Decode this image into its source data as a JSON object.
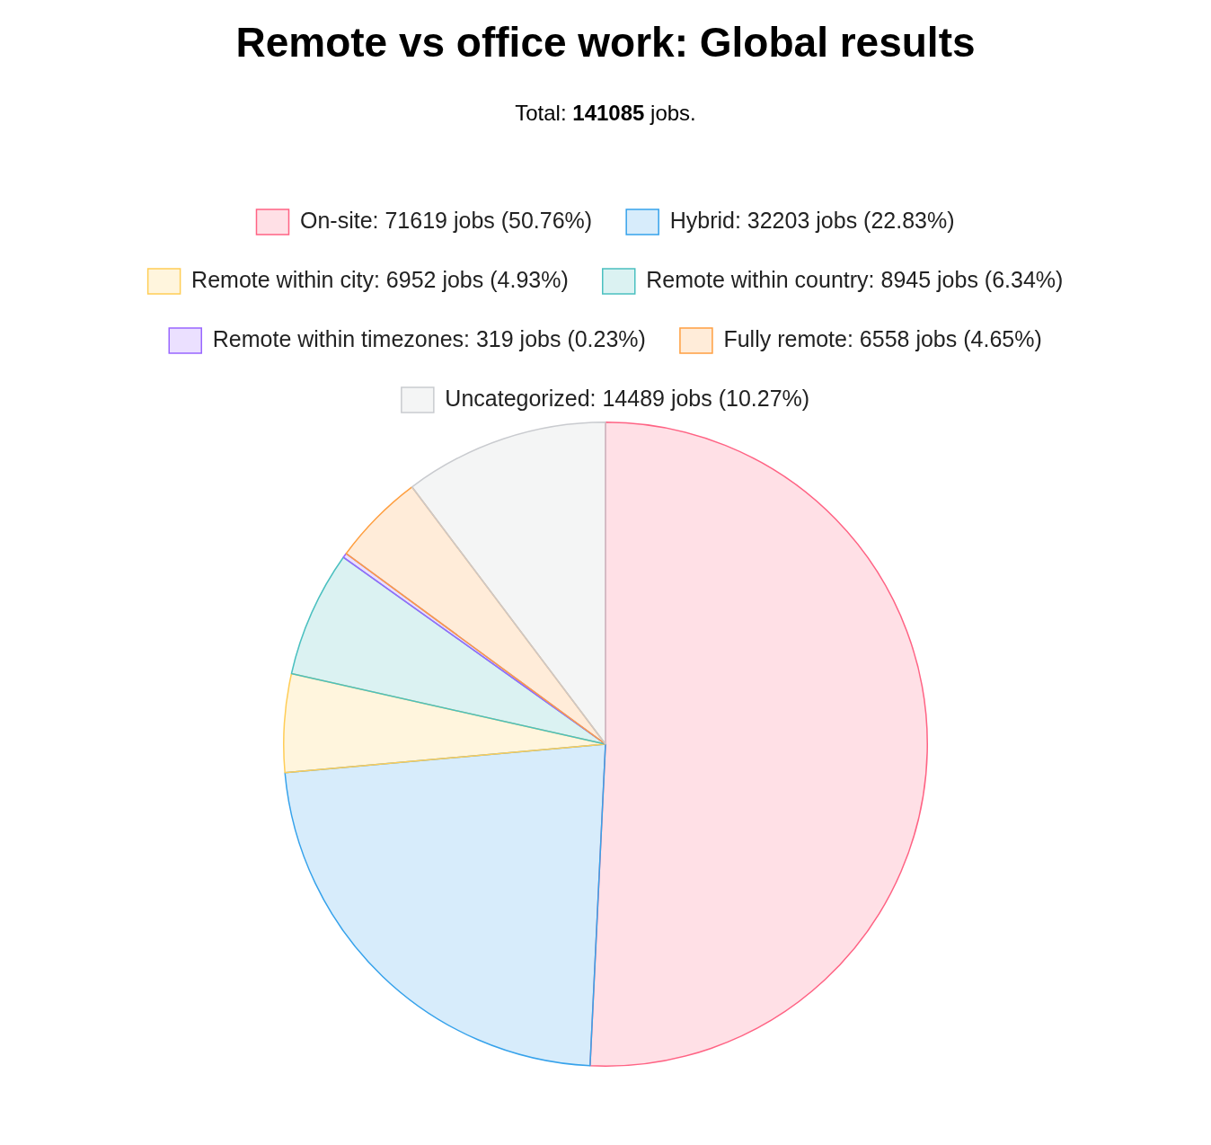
{
  "chart_data": {
    "type": "pie",
    "title": "Remote vs office work: Global results",
    "subtitle": "Total: 141085 jobs.",
    "categories": [
      "On-site: 71619 jobs (50.76%)",
      "Hybrid: 32203 jobs (22.83%)",
      "Remote within city: 6952 jobs (4.93%)",
      "Remote within country: 8945 jobs (6.34%)",
      "Remote within timezones: 319 jobs (0.23%)",
      "Fully remote: 6558 jobs (4.65%)",
      "Uncategorized: 14489 jobs (10.27%)"
    ],
    "values": [
      71619,
      32203,
      6952,
      8945,
      319,
      6558,
      14489
    ],
    "colors": [
      "#ff6384",
      "#36a2eb",
      "#ffcd56",
      "#4bc0c0",
      "#9966ff",
      "#ff9f40",
      "#c9cbcf"
    ],
    "legend": "top"
  }
}
